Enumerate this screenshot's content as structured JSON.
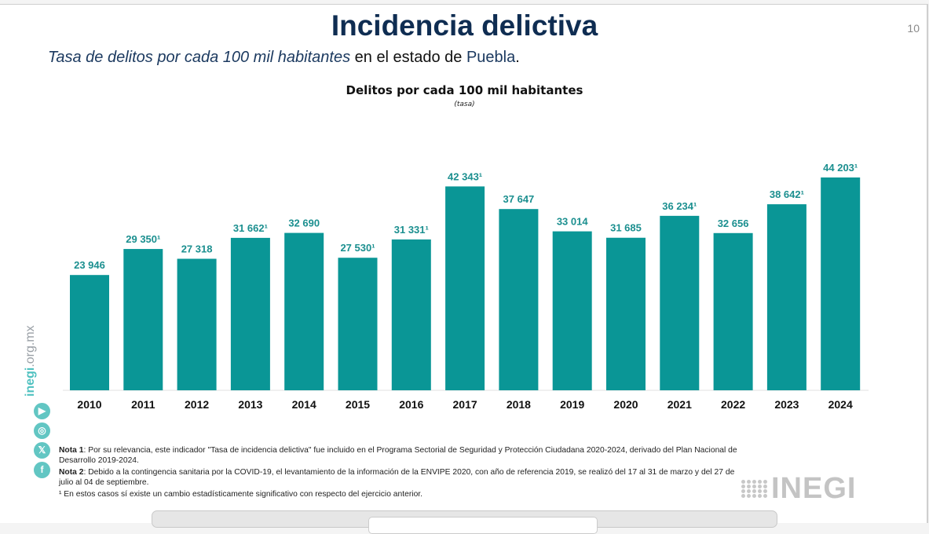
{
  "slide": {
    "title": "Incidencia delictiva",
    "page_number": "10",
    "subtitle_italic": "Tasa de delitos por cada 100 mil habitantes",
    "subtitle_mid": " en el estado de ",
    "subtitle_place": "Puebla",
    "subtitle_end": "."
  },
  "side": {
    "url_bold": "inegi",
    "url_rest": ".org.mx",
    "social_icons": [
      "youtube-icon",
      "instagram-icon",
      "x-icon",
      "facebook-icon"
    ]
  },
  "notes": {
    "nota1_label": "Nota 1",
    "nota1_text": ": Por su relevancia, este indicador \"Tasa de incidencia delictiva\" fue incluido en el Programa Sectorial de Seguridad y Protección Ciudadana 2020-2024, derivado del Plan Nacional de Desarrollo 2019-2024.",
    "nota2_label": "Nota 2",
    "nota2_text": ": Debido a la contingencia sanitaria por la COVID-19, el levantamiento de la información de la ENVIPE 2020, con año de referencia 2019, se realizó del 17 al 31 de marzo y del 27 de julio al 04 de septiembre.",
    "footnote": "¹ En estos casos sí existe un cambio estadísticamente significativo con respecto del ejercicio anterior."
  },
  "logo": {
    "text": "INEGI"
  },
  "colors": {
    "bar": "#0a9696",
    "label": "#1b8f8f",
    "title": "#0f2d52"
  },
  "chart_data": {
    "type": "bar",
    "title": "Delitos por cada 100 mil habitantes",
    "subtitle": "(tasa)",
    "xlabel": "",
    "ylabel": "",
    "ylim": [
      0,
      44203
    ],
    "grid": false,
    "categories": [
      "2010",
      "2011",
      "2012",
      "2013",
      "2014",
      "2015",
      "2016",
      "2017",
      "2018",
      "2019",
      "2020",
      "2021",
      "2022",
      "2023",
      "2024"
    ],
    "values": [
      23946,
      29350,
      27318,
      31662,
      32690,
      27530,
      31331,
      42343,
      37647,
      33014,
      31685,
      36234,
      32656,
      38642,
      44203
    ],
    "labels": [
      "23 946",
      "29 350¹",
      "27 318",
      "31 662¹",
      "32 690",
      "27 530¹",
      "31 331¹",
      "42 343¹",
      "37 647",
      "33 014",
      "31 685",
      "36 234¹",
      "32 656",
      "38 642¹",
      "44 203¹"
    ]
  }
}
